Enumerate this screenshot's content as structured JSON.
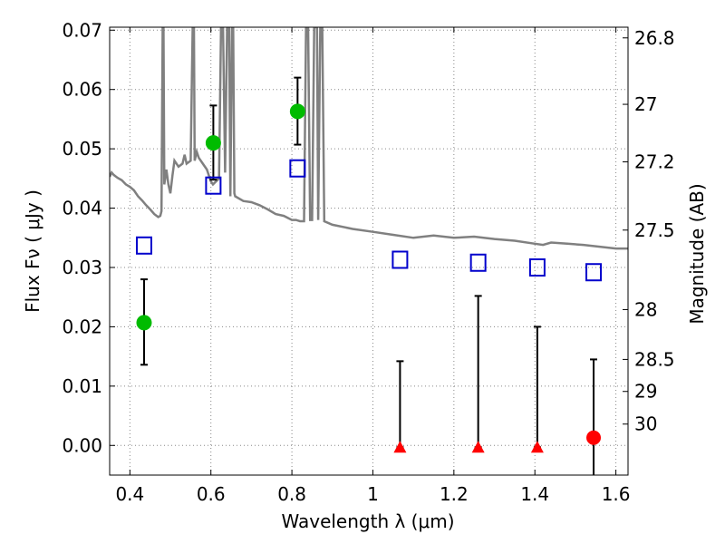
{
  "chart_data": {
    "type": "scatter",
    "xlabel": "Wavelength  λ (μm)",
    "ylabel": "Flux  Fν  ( μJy )",
    "y2label": "Magnitude (AB)",
    "xlim": [
      0.35,
      1.63
    ],
    "ylim": [
      -0.005,
      0.0705
    ],
    "grid": true,
    "x_ticks": [
      0.4,
      0.6,
      0.8,
      1.0,
      1.2,
      1.4,
      1.6
    ],
    "x_tick_labels": [
      "0.4",
      "0.6",
      "0.8",
      "1",
      "1.2",
      "1.4",
      "1.6"
    ],
    "y_ticks": [
      0.0,
      0.01,
      0.02,
      0.03,
      0.04,
      0.05,
      0.06,
      0.07
    ],
    "y_tick_labels": [
      "0.00",
      "0.01",
      "0.02",
      "0.03",
      "0.04",
      "0.05",
      "0.06",
      "0.07"
    ],
    "mag_ticks": [
      {
        "label": "26.8",
        "flux": 0.0687
      },
      {
        "label": "27",
        "flux": 0.0575
      },
      {
        "label": "27.2",
        "flux": 0.0478
      },
      {
        "label": "27.5",
        "flux": 0.0363
      },
      {
        "label": "28",
        "flux": 0.0229
      },
      {
        "label": "28.5",
        "flux": 0.0145
      },
      {
        "label": "29",
        "flux": 0.0091
      },
      {
        "label": "30",
        "flux": 0.0036
      }
    ],
    "model_sed_color": "#808080",
    "model_sed": [
      [
        0.35,
        0.0453
      ],
      [
        0.355,
        0.046
      ],
      [
        0.36,
        0.0456
      ],
      [
        0.37,
        0.0451
      ],
      [
        0.38,
        0.0447
      ],
      [
        0.39,
        0.044
      ],
      [
        0.4,
        0.0436
      ],
      [
        0.41,
        0.043
      ],
      [
        0.42,
        0.042
      ],
      [
        0.43,
        0.0413
      ],
      [
        0.44,
        0.0405
      ],
      [
        0.45,
        0.0398
      ],
      [
        0.46,
        0.039
      ],
      [
        0.47,
        0.0385
      ],
      [
        0.475,
        0.0387
      ],
      [
        0.478,
        0.0395
      ],
      [
        0.481,
        0.0705
      ],
      [
        0.483,
        0.0705
      ],
      [
        0.485,
        0.044
      ],
      [
        0.49,
        0.0465
      ],
      [
        0.495,
        0.044
      ],
      [
        0.5,
        0.0425
      ],
      [
        0.505,
        0.0455
      ],
      [
        0.51,
        0.048
      ],
      [
        0.52,
        0.047
      ],
      [
        0.53,
        0.0475
      ],
      [
        0.535,
        0.049
      ],
      [
        0.54,
        0.0475
      ],
      [
        0.55,
        0.048
      ],
      [
        0.555,
        0.0705
      ],
      [
        0.558,
        0.0705
      ],
      [
        0.56,
        0.048
      ],
      [
        0.565,
        0.0495
      ],
      [
        0.57,
        0.0485
      ],
      [
        0.58,
        0.0475
      ],
      [
        0.59,
        0.0465
      ],
      [
        0.595,
        0.0455
      ],
      [
        0.6,
        0.0445
      ],
      [
        0.605,
        0.044
      ],
      [
        0.62,
        0.045
      ],
      [
        0.625,
        0.0705
      ],
      [
        0.63,
        0.0705
      ],
      [
        0.635,
        0.046
      ],
      [
        0.64,
        0.0705
      ],
      [
        0.645,
        0.0705
      ],
      [
        0.648,
        0.042
      ],
      [
        0.652,
        0.0705
      ],
      [
        0.655,
        0.0705
      ],
      [
        0.658,
        0.0425
      ],
      [
        0.66,
        0.042
      ],
      [
        0.68,
        0.0412
      ],
      [
        0.7,
        0.041
      ],
      [
        0.72,
        0.0405
      ],
      [
        0.74,
        0.0398
      ],
      [
        0.76,
        0.039
      ],
      [
        0.78,
        0.0387
      ],
      [
        0.8,
        0.038
      ],
      [
        0.81,
        0.038
      ],
      [
        0.82,
        0.0378
      ],
      [
        0.83,
        0.0378
      ],
      [
        0.835,
        0.0705
      ],
      [
        0.84,
        0.0705
      ],
      [
        0.845,
        0.038
      ],
      [
        0.85,
        0.038
      ],
      [
        0.855,
        0.0705
      ],
      [
        0.862,
        0.0705
      ],
      [
        0.865,
        0.038
      ],
      [
        0.87,
        0.0705
      ],
      [
        0.875,
        0.0705
      ],
      [
        0.88,
        0.0378
      ],
      [
        0.9,
        0.0372
      ],
      [
        0.95,
        0.0365
      ],
      [
        1.0,
        0.036
      ],
      [
        1.05,
        0.0355
      ],
      [
        1.1,
        0.035
      ],
      [
        1.15,
        0.0354
      ],
      [
        1.2,
        0.035
      ],
      [
        1.25,
        0.0352
      ],
      [
        1.3,
        0.0348
      ],
      [
        1.35,
        0.0345
      ],
      [
        1.4,
        0.034
      ],
      [
        1.42,
        0.0338
      ],
      [
        1.44,
        0.0342
      ],
      [
        1.48,
        0.034
      ],
      [
        1.52,
        0.0338
      ],
      [
        1.56,
        0.0335
      ],
      [
        1.6,
        0.0332
      ],
      [
        1.63,
        0.0332
      ]
    ],
    "model_photometry": [
      {
        "x": 0.435,
        "y": 0.0337
      },
      {
        "x": 0.606,
        "y": 0.0438
      },
      {
        "x": 0.814,
        "y": 0.0467
      },
      {
        "x": 1.067,
        "y": 0.0313
      },
      {
        "x": 1.26,
        "y": 0.0308
      },
      {
        "x": 1.406,
        "y": 0.03
      },
      {
        "x": 1.545,
        "y": 0.0292
      }
    ],
    "detections": [
      {
        "x": 0.435,
        "y": 0.0207,
        "err_low": 0.0136,
        "err_high": 0.028
      },
      {
        "x": 0.606,
        "y": 0.051,
        "err_low": 0.0448,
        "err_high": 0.0573
      },
      {
        "x": 0.814,
        "y": 0.0563,
        "err_low": 0.0507,
        "err_high": 0.062
      }
    ],
    "non_detections": [
      {
        "x": 1.067,
        "y": -0.0003,
        "err_high": 0.0142,
        "err_low": -0.0003
      },
      {
        "x": 1.26,
        "y": -0.0003,
        "err_high": 0.0252,
        "err_low": -0.0003
      },
      {
        "x": 1.406,
        "y": -0.0003,
        "err_high": 0.02,
        "err_low": -0.0003
      }
    ],
    "low_sn": [
      {
        "x": 1.545,
        "y": 0.0013,
        "err_high": 0.0145,
        "err_low": -0.006
      }
    ],
    "colors": {
      "detection": "#00bb00",
      "model_photometry": "#0000cc",
      "non_detection": "#ff0000",
      "errorbar": "#000000",
      "grid": "#888888"
    }
  }
}
